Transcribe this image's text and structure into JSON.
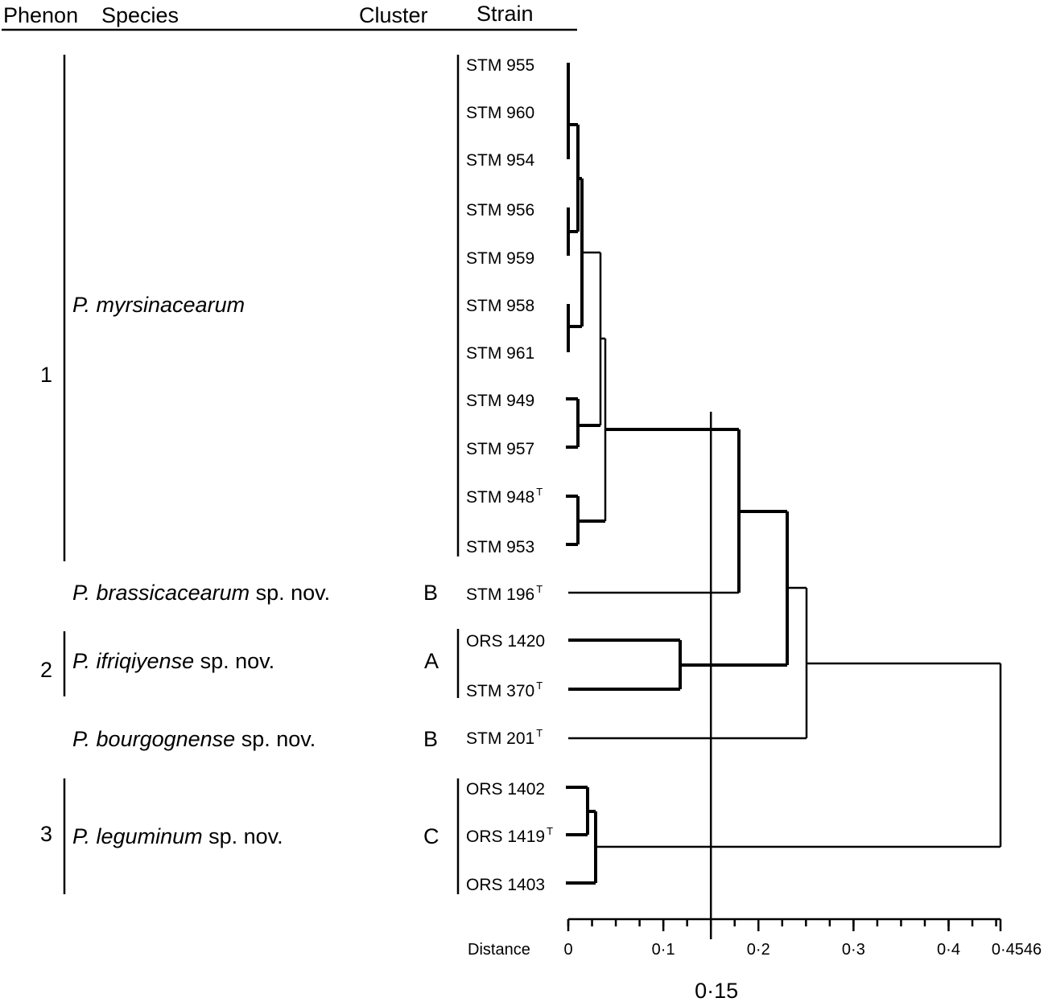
{
  "headers": {
    "phenon": "Phenon",
    "species": "Species",
    "cluster": "Cluster",
    "strain": "Strain"
  },
  "phenons": [
    "1",
    "2",
    "3"
  ],
  "species": [
    {
      "name": "P. myrsinacearum",
      "suffix": ""
    },
    {
      "name": "P. brassicacearum",
      "suffix": " sp. nov."
    },
    {
      "name": "P. ifriqiyense",
      "suffix": " sp. nov."
    },
    {
      "name": "P. bourgognense",
      "suffix": " sp. nov."
    },
    {
      "name": "P. leguminum",
      "suffix": " sp. nov."
    }
  ],
  "clusters": [
    "B",
    "A",
    "B",
    "C"
  ],
  "strains": [
    {
      "label": "STM 955",
      "type_strain": ""
    },
    {
      "label": "STM 960",
      "type_strain": ""
    },
    {
      "label": "STM 954",
      "type_strain": ""
    },
    {
      "label": "STM 956",
      "type_strain": ""
    },
    {
      "label": "STM 959",
      "type_strain": ""
    },
    {
      "label": "STM 958",
      "type_strain": ""
    },
    {
      "label": "STM 961",
      "type_strain": ""
    },
    {
      "label": "STM 949",
      "type_strain": ""
    },
    {
      "label": "STM 957",
      "type_strain": ""
    },
    {
      "label": "STM 948",
      "type_strain": "T"
    },
    {
      "label": "STM 953",
      "type_strain": ""
    },
    {
      "label": "STM 196",
      "type_strain": "T"
    },
    {
      "label": "ORS 1420",
      "type_strain": ""
    },
    {
      "label": "STM 370",
      "type_strain": "T"
    },
    {
      "label": "STM 201",
      "type_strain": "T"
    },
    {
      "label": "ORS 1402",
      "type_strain": ""
    },
    {
      "label": "ORS 1419",
      "type_strain": "T"
    },
    {
      "label": "ORS 1403",
      "type_strain": ""
    }
  ],
  "axis": {
    "label": "Distance",
    "ticks": [
      {
        "value": 0,
        "label": "0"
      },
      {
        "value": 0.1,
        "label": "0·1"
      },
      {
        "value": 0.2,
        "label": "0·2"
      },
      {
        "value": 0.3,
        "label": "0·3"
      },
      {
        "value": 0.4,
        "label": "0·4"
      },
      {
        "value": 0.4546,
        "label": "0·4546"
      }
    ],
    "min": 0,
    "max": 0.4546
  },
  "cutoff": {
    "value": 0.15,
    "label": "0·15"
  }
}
